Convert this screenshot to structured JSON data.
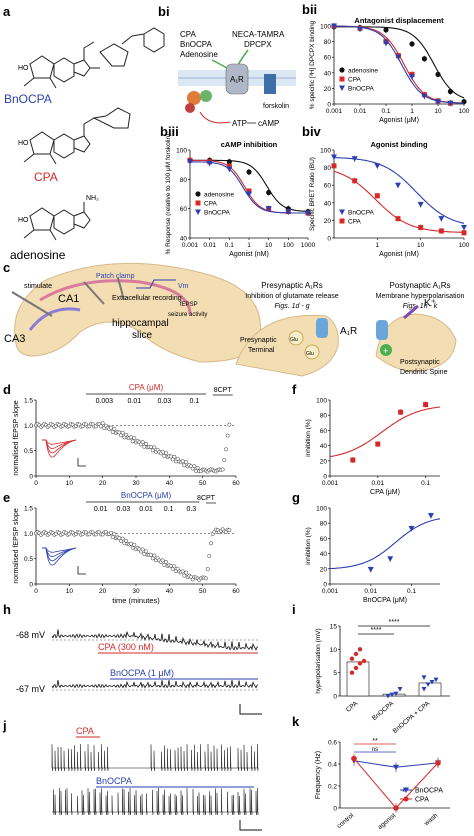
{
  "panels": {
    "a": "a",
    "bi": "bi",
    "bii": "bii",
    "biii": "biii",
    "biv": "biv",
    "c": "c",
    "d": "d",
    "e": "e",
    "f": "f",
    "g": "g",
    "h": "h",
    "i": "i",
    "j": "j",
    "k": "k"
  },
  "structures": {
    "bnocpa": "BnOCPA",
    "cpa": "CPA",
    "adenosine": "adenosine"
  },
  "schematic_b": {
    "cpa": "CPA",
    "bnocpa": "BnOCPA",
    "adenosine": "Adenosine",
    "neca": "NECA-TAMRA",
    "dpcpx": "DPCPX",
    "a1r": "A₁R",
    "forskolin": "forskolin",
    "atp": "ATP",
    "camp": "cAMP"
  },
  "schematic_c": {
    "stimulate": "stimulate",
    "patch": "Patch clamp",
    "extracellular": "Extracellular recording",
    "ca1": "CA1",
    "ca3": "CA3",
    "slice1": "hippocampal",
    "slice2": "slice",
    "vm": "Vm",
    "fepsp": "fEPSP",
    "seizure": "seizure activity",
    "pre_title": "Presynaptic A₁Rs",
    "pre_sub": "Inhibition of glutamate release",
    "pre_figs": "Figs. 1d - g",
    "post_title": "Postynaptic A₁Rs",
    "post_sub": "Membrane hyperpolarisation",
    "post_figs": "Figs. 1h - k",
    "pre_terminal1": "Presynaptic",
    "pre_terminal2": "Terminal",
    "a1r": "A₁R",
    "k": "K⁺",
    "post_spine1": "Postsynaptic",
    "post_spine2": "Dendritic Spine",
    "glu": "Glu"
  },
  "colors": {
    "cpa": "#d42a2a",
    "bnocpa": "#2a3fb0",
    "adenosine": "#111111"
  },
  "chart_data": [
    {
      "id": "bii",
      "type": "line",
      "title": "Antagonist displacement",
      "xlabel": "Agonist (μM)",
      "ylabel": "% specific [³H] DPCPX binding",
      "xscale": "log",
      "xlim": [
        0.001,
        100
      ],
      "ylim": [
        0,
        100
      ],
      "xticks": [
        "0.001",
        "0.01",
        "0.1",
        "1",
        "10",
        "100"
      ],
      "yticks": [
        "0",
        "20",
        "40",
        "60",
        "80",
        "100"
      ],
      "legend": "bottom-left",
      "series": [
        {
          "name": "adenosine",
          "ec50": 7,
          "x": [
            0.001,
            0.01,
            0.1,
            1,
            3,
            10,
            30,
            100
          ],
          "y": [
            99,
            98,
            95,
            77,
            58,
            38,
            16,
            3
          ]
        },
        {
          "name": "CPA",
          "ec50": 0.5,
          "x": [
            0.001,
            0.01,
            0.1,
            0.3,
            1,
            3,
            10,
            30
          ],
          "y": [
            100,
            97,
            80,
            62,
            38,
            12,
            4,
            1
          ]
        },
        {
          "name": "BnOCPA",
          "ec50": 0.4,
          "x": [
            0.001,
            0.01,
            0.1,
            0.3,
            1,
            3,
            10,
            30
          ],
          "y": [
            100,
            96,
            78,
            60,
            35,
            10,
            3,
            1
          ]
        }
      ]
    },
    {
      "id": "biii",
      "type": "line",
      "title": "cAMP inhibition",
      "xlabel": "Agonist (nM)",
      "ylabel": "% Response (relative to 100 μM forskolin)",
      "xscale": "log",
      "xlim": [
        0.001,
        1000
      ],
      "ylim": [
        40,
        100
      ],
      "xticks": [
        "0.001",
        "0.01",
        "0.1",
        "1",
        "10",
        "100",
        "1000"
      ],
      "yticks": [
        "40",
        "60",
        "80",
        "100"
      ],
      "legend": "bottom-left",
      "series": [
        {
          "name": "adenosine",
          "ec50": 8,
          "x": [
            0.001,
            0.01,
            0.1,
            1,
            10,
            100,
            1000
          ],
          "y": [
            93,
            93,
            92,
            85,
            71,
            60,
            58
          ]
        },
        {
          "name": "CPA",
          "ec50": 0.6,
          "x": [
            0.001,
            0.01,
            0.1,
            1,
            10,
            100,
            1000
          ],
          "y": [
            93,
            92,
            89,
            72,
            60,
            58,
            57
          ]
        },
        {
          "name": "BnOCPA",
          "ec50": 0.5,
          "x": [
            0.001,
            0.01,
            0.1,
            1,
            10,
            100,
            1000
          ],
          "y": [
            92,
            91,
            87,
            70,
            60,
            58,
            57
          ]
        }
      ]
    },
    {
      "id": "biv",
      "type": "line",
      "title": "Agonist binding",
      "xlabel": "Agonist (nM)",
      "ylabel": "Specific BRET Ratio (BU)",
      "xscale": "log",
      "xlim": [
        0.1,
        100
      ],
      "ylim": [
        0,
        100
      ],
      "xticks": [
        "1",
        "10",
        "100"
      ],
      "yticks": [
        "0",
        "20",
        "40",
        "60",
        "80",
        "100"
      ],
      "legend": "bottom-left",
      "series": [
        {
          "name": "BnOCPA",
          "ec50": 8,
          "x": [
            0.1,
            0.3,
            1,
            3,
            10,
            30,
            100
          ],
          "y": [
            92,
            90,
            82,
            60,
            38,
            22,
            12
          ]
        },
        {
          "name": "CPA",
          "ec50": 0.9,
          "x": [
            0.1,
            0.3,
            1,
            3,
            10,
            30,
            100
          ],
          "y": [
            82,
            65,
            48,
            22,
            12,
            8,
            6
          ]
        }
      ]
    },
    {
      "id": "d",
      "type": "scatter",
      "ylabel": "normalised fEPSP slope",
      "xlabel": "",
      "xlim": [
        0,
        60
      ],
      "ylim": [
        0,
        1.5
      ],
      "xticks": [
        "0",
        "10",
        "20",
        "30",
        "40",
        "50",
        "60"
      ],
      "yticks": [
        "0",
        "0.5",
        "1.0",
        "1.5"
      ],
      "drug": "CPA (μM)",
      "concentrations": [
        "0.003",
        "0.01",
        "0.03",
        "0.1"
      ],
      "antagonist": "8CPT",
      "drop_start": 20,
      "drop_end": 50,
      "recover": 56
    },
    {
      "id": "e",
      "type": "scatter",
      "ylabel": "normalised fEPSP slope",
      "xlabel": "time (minutes)",
      "xlim": [
        0,
        60
      ],
      "ylim": [
        0,
        1.5
      ],
      "xticks": [
        "0",
        "10",
        "20",
        "30",
        "40",
        "50",
        "60"
      ],
      "yticks": [
        "0",
        "0.5",
        "1.0",
        "1.5"
      ],
      "drug": "BnOCPA (μM)",
      "concentrations": [
        "0.01",
        "0.03",
        "0.01",
        "0.1",
        "0.3"
      ],
      "antagonist": "8CPT",
      "drop_start": 22,
      "drop_end": 48,
      "recover": 51
    },
    {
      "id": "f",
      "type": "line",
      "xlabel": "CPA (μM)",
      "ylabel": "inhibition (%)",
      "xscale": "log",
      "xlim": [
        0.001,
        0.2
      ],
      "ylim": [
        0,
        100
      ],
      "xticks": [
        "0.001",
        "0.01",
        "0.1"
      ],
      "yticks": [
        "0",
        "20",
        "40",
        "60",
        "80",
        "100"
      ],
      "series": [
        {
          "name": "CPA",
          "ec50": 0.012,
          "x": [
            0.003,
            0.01,
            0.03,
            0.1
          ],
          "y": [
            21,
            42,
            84,
            94
          ]
        }
      ]
    },
    {
      "id": "g",
      "type": "line",
      "xlabel": "BnOCPA (μM)",
      "ylabel": "inhibition (%)",
      "xscale": "log",
      "xlim": [
        0.001,
        0.5
      ],
      "ylim": [
        0,
        100
      ],
      "xticks": [
        "0.001",
        "0.01",
        "0.1"
      ],
      "yticks": [
        "0",
        "20",
        "40",
        "60",
        "80",
        "100"
      ],
      "series": [
        {
          "name": "BnOCPA",
          "ec50": 0.04,
          "x": [
            0.01,
            0.03,
            0.1,
            0.3
          ],
          "y": [
            19,
            33,
            73,
            90
          ]
        }
      ]
    },
    {
      "id": "i",
      "type": "bar",
      "ylabel": "hyperpolarisation (mV)",
      "categories": [
        "CPA",
        "BnOCPA",
        "BnOCPA + CPA"
      ],
      "values": [
        7.3,
        0.4,
        2.8
      ],
      "ylim": [
        0,
        15
      ],
      "yticks": [
        "0",
        "5",
        "10",
        "15"
      ],
      "points": [
        [
          5,
          6,
          7,
          7.5,
          8,
          9,
          10
        ],
        [
          0,
          0.3,
          0.5,
          1.5
        ],
        [
          1.5,
          2.5,
          3,
          3.5,
          4
        ]
      ],
      "significance": [
        "****",
        "****"
      ]
    },
    {
      "id": "k",
      "type": "line",
      "ylabel": "Frequency (Hz)",
      "categories": [
        "control",
        "agonist",
        "wash"
      ],
      "ylim": [
        0,
        0.6
      ],
      "yticks": [
        "0",
        "0.2",
        "0.4",
        "0.6"
      ],
      "legend": "bottom-right",
      "series": [
        {
          "name": "BnOCPA",
          "values": [
            0.43,
            0.37,
            0.41
          ]
        },
        {
          "name": "CPA",
          "values": [
            0.45,
            0,
            0.41
          ]
        }
      ],
      "significance": [
        "**",
        "ns",
        "*"
      ]
    }
  ],
  "traces": {
    "h_cpa": "CPA (300 nM)",
    "h_bnocpa": "BnOCPA (1 μM)",
    "h_v1": "-68 mV",
    "h_v2": "-67 mV",
    "j_cpa": "CPA",
    "j_bnocpa": "BnOCPA"
  }
}
